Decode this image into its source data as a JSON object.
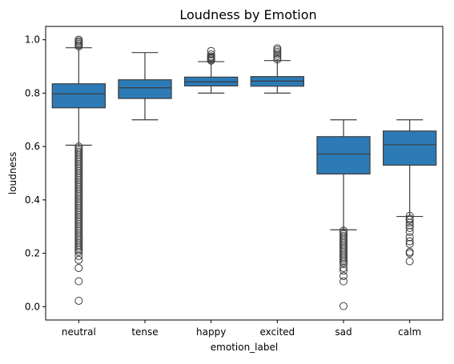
{
  "chart_data": {
    "type": "box",
    "title": "Loudness by Emotion",
    "xlabel": "emotion_label",
    "ylabel": "loudness",
    "ylim": [
      -0.05,
      1.05
    ],
    "yticks": [
      "0.0",
      "0.2",
      "0.4",
      "0.6",
      "0.8",
      "1.0"
    ],
    "grid": false,
    "box_color": "#2c7bb6",
    "line_color": "#3d3d3d",
    "categories": [
      "neutral",
      "tense",
      "happy",
      "excited",
      "sad",
      "calm"
    ],
    "boxes": [
      {
        "category": "neutral",
        "whisker_low": 0.605,
        "q1": 0.745,
        "median": 0.797,
        "q3": 0.835,
        "whisker_high": 0.97,
        "outliers_high": [
          0.975,
          0.98,
          0.985,
          0.99,
          0.995,
          1.0
        ],
        "outlier_band_low": [
          0.2,
          0.6
        ],
        "outliers_low": [
          0.19,
          0.175,
          0.145,
          0.095,
          0.022
        ]
      },
      {
        "category": "tense",
        "whisker_low": 0.7,
        "q1": 0.78,
        "median": 0.82,
        "q3": 0.85,
        "whisker_high": 0.952,
        "outliers_high": [],
        "outlier_band_low": null,
        "outliers_low": []
      },
      {
        "category": "happy",
        "whisker_low": 0.8,
        "q1": 0.827,
        "median": 0.842,
        "q3": 0.86,
        "whisker_high": 0.918,
        "outliers_high": [
          0.922,
          0.926,
          0.93,
          0.934,
          0.938,
          0.945,
          0.958
        ],
        "outlier_band_low": null,
        "outliers_low": []
      },
      {
        "category": "excited",
        "whisker_low": 0.8,
        "q1": 0.826,
        "median": 0.845,
        "q3": 0.862,
        "whisker_high": 0.922,
        "outliers_high": [
          0.926,
          0.932,
          0.94,
          0.948,
          0.955,
          0.962,
          0.968
        ],
        "outlier_band_low": null,
        "outliers_low": []
      },
      {
        "category": "sad",
        "whisker_low": 0.288,
        "q1": 0.497,
        "median": 0.572,
        "q3": 0.637,
        "whisker_high": 0.7,
        "outliers_high": [],
        "outlier_band_low": [
          0.155,
          0.285
        ],
        "outliers_low": [
          0.145,
          0.135,
          0.115,
          0.095,
          0.002
        ]
      },
      {
        "category": "calm",
        "whisker_low": 0.338,
        "q1": 0.53,
        "median": 0.607,
        "q3": 0.658,
        "whisker_high": 0.7,
        "outliers_high": [],
        "outlier_band_low": null,
        "outliers_low": [
          0.34,
          0.33,
          0.325,
          0.315,
          0.305,
          0.295,
          0.28,
          0.26,
          0.245,
          0.235,
          0.205,
          0.2,
          0.17
        ]
      }
    ]
  }
}
